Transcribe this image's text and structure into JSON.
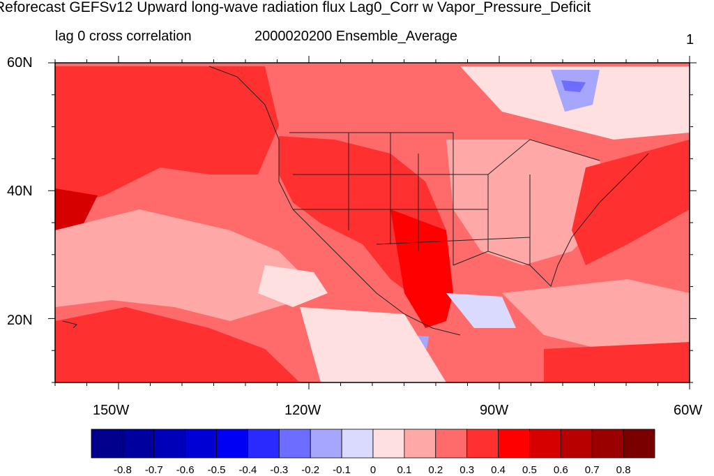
{
  "title": "Reforecast GEFSv12 Upward long-wave radiation flux Lag0_Corr w Vapor_Pressure_Deficit",
  "subtitle_left": "lag 0 cross correlation",
  "subtitle_center": "2000020200 Ensemble_Average",
  "subtitle_right": "1",
  "map": {
    "lat_labels": [
      "60N",
      "40N",
      "20N"
    ],
    "lon_labels": [
      "150W",
      "120W",
      "90W",
      "60W"
    ],
    "lat_range": [
      10,
      60
    ],
    "lon_range": [
      -160,
      -60
    ]
  },
  "colorbar": {
    "labels": [
      "-0.8",
      "-0.7",
      "-0.6",
      "-0.5",
      "-0.4",
      "-0.3",
      "-0.2",
      "-0.1",
      "0",
      "0.1",
      "0.2",
      "0.3",
      "0.4",
      "0.5",
      "0.6",
      "0.7",
      "0.8"
    ],
    "colors": [
      "#00008c",
      "#00009e",
      "#0000b8",
      "#0000d4",
      "#0000f2",
      "#2a2aff",
      "#6d6dff",
      "#a6a6ff",
      "#dadaff",
      "#ffe0e0",
      "#ffa8a8",
      "#ff6b6b",
      "#ff3030",
      "#ff0000",
      "#d60000",
      "#b80000",
      "#9a0000",
      "#7a0000"
    ]
  }
}
